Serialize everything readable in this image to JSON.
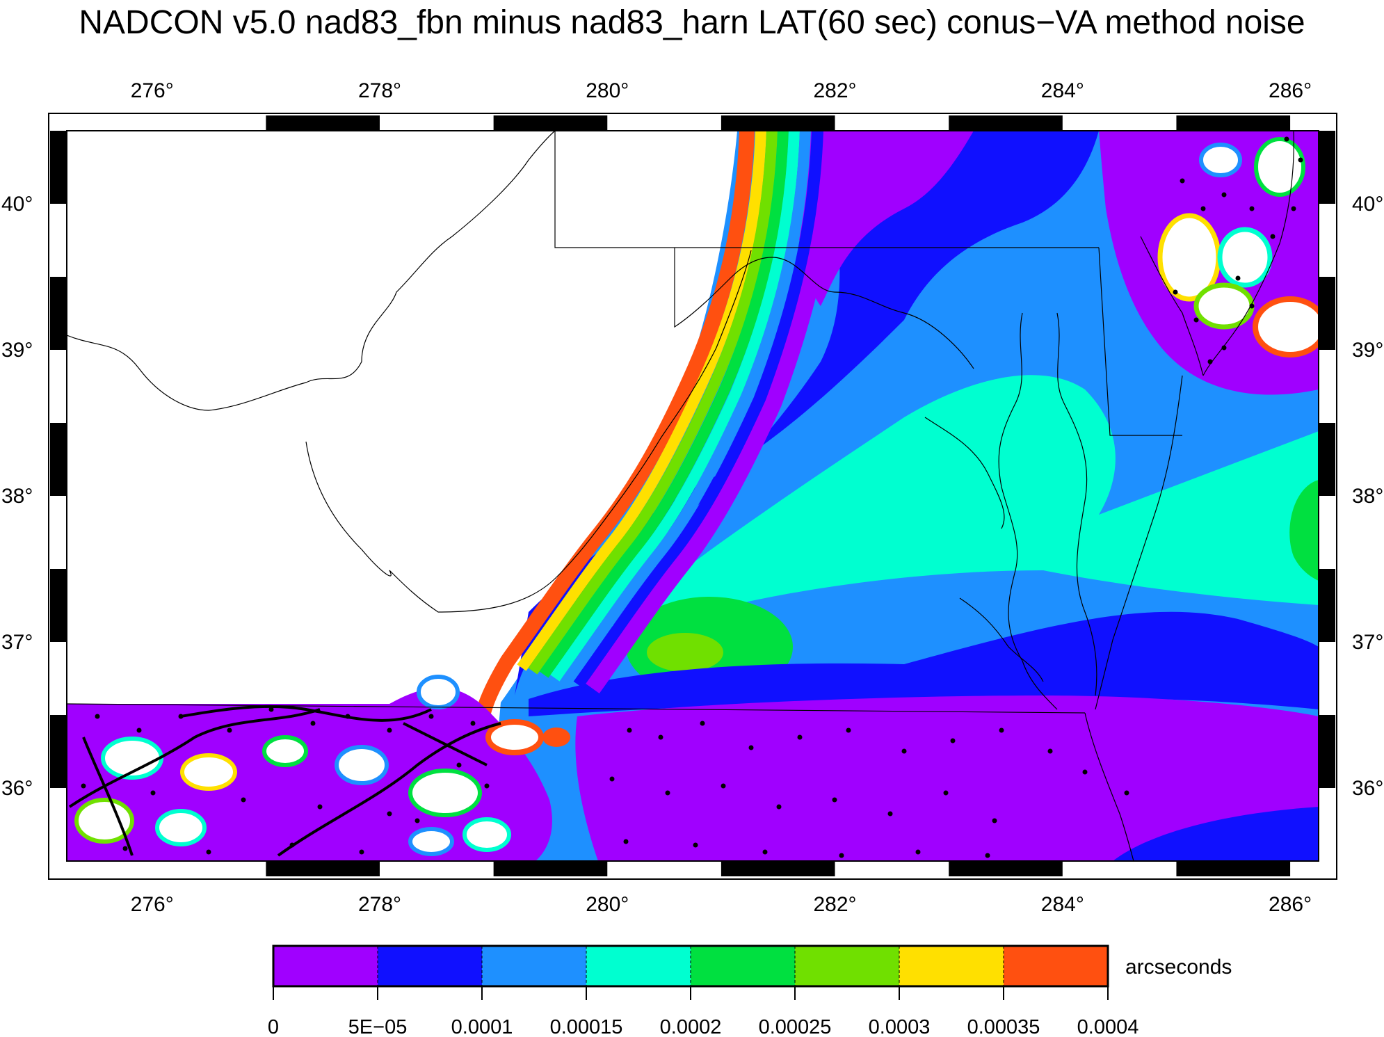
{
  "title": "NADCON v5.0 nad83_fbn minus nad83_harn LAT(60 sec) conus−VA method noise",
  "map": {
    "lon_range": [
      275.25,
      286.25
    ],
    "lat_range": [
      35.5,
      40.5
    ],
    "lon_ticks": [
      "276°",
      "278°",
      "280°",
      "282°",
      "284°",
      "286°"
    ],
    "lat_ticks": [
      "36°",
      "37°",
      "38°",
      "39°",
      "40°"
    ]
  },
  "colorbar": {
    "unit_label": "arcseconds",
    "tick_labels": [
      "0",
      "5E−05",
      "0.0001",
      "0.00015",
      "0.0002",
      "0.00025",
      "0.0003",
      "0.00035",
      "0.0004"
    ],
    "bins": [
      {
        "from": 0,
        "to": 5e-05,
        "color": "#a000ff"
      },
      {
        "from": 5e-05,
        "to": 0.0001,
        "color": "#1010ff"
      },
      {
        "from": 0.0001,
        "to": 0.00015,
        "color": "#1e90ff"
      },
      {
        "from": 0.00015,
        "to": 0.0002,
        "color": "#00ffd0"
      },
      {
        "from": 0.0002,
        "to": 0.00025,
        "color": "#00e040"
      },
      {
        "from": 0.00025,
        "to": 0.0003,
        "color": "#70e000"
      },
      {
        "from": 0.0003,
        "to": 0.00035,
        "color": "#ffe000"
      },
      {
        "from": 0.00035,
        "to": 0.0004,
        "color": "#ff5010"
      }
    ]
  }
}
